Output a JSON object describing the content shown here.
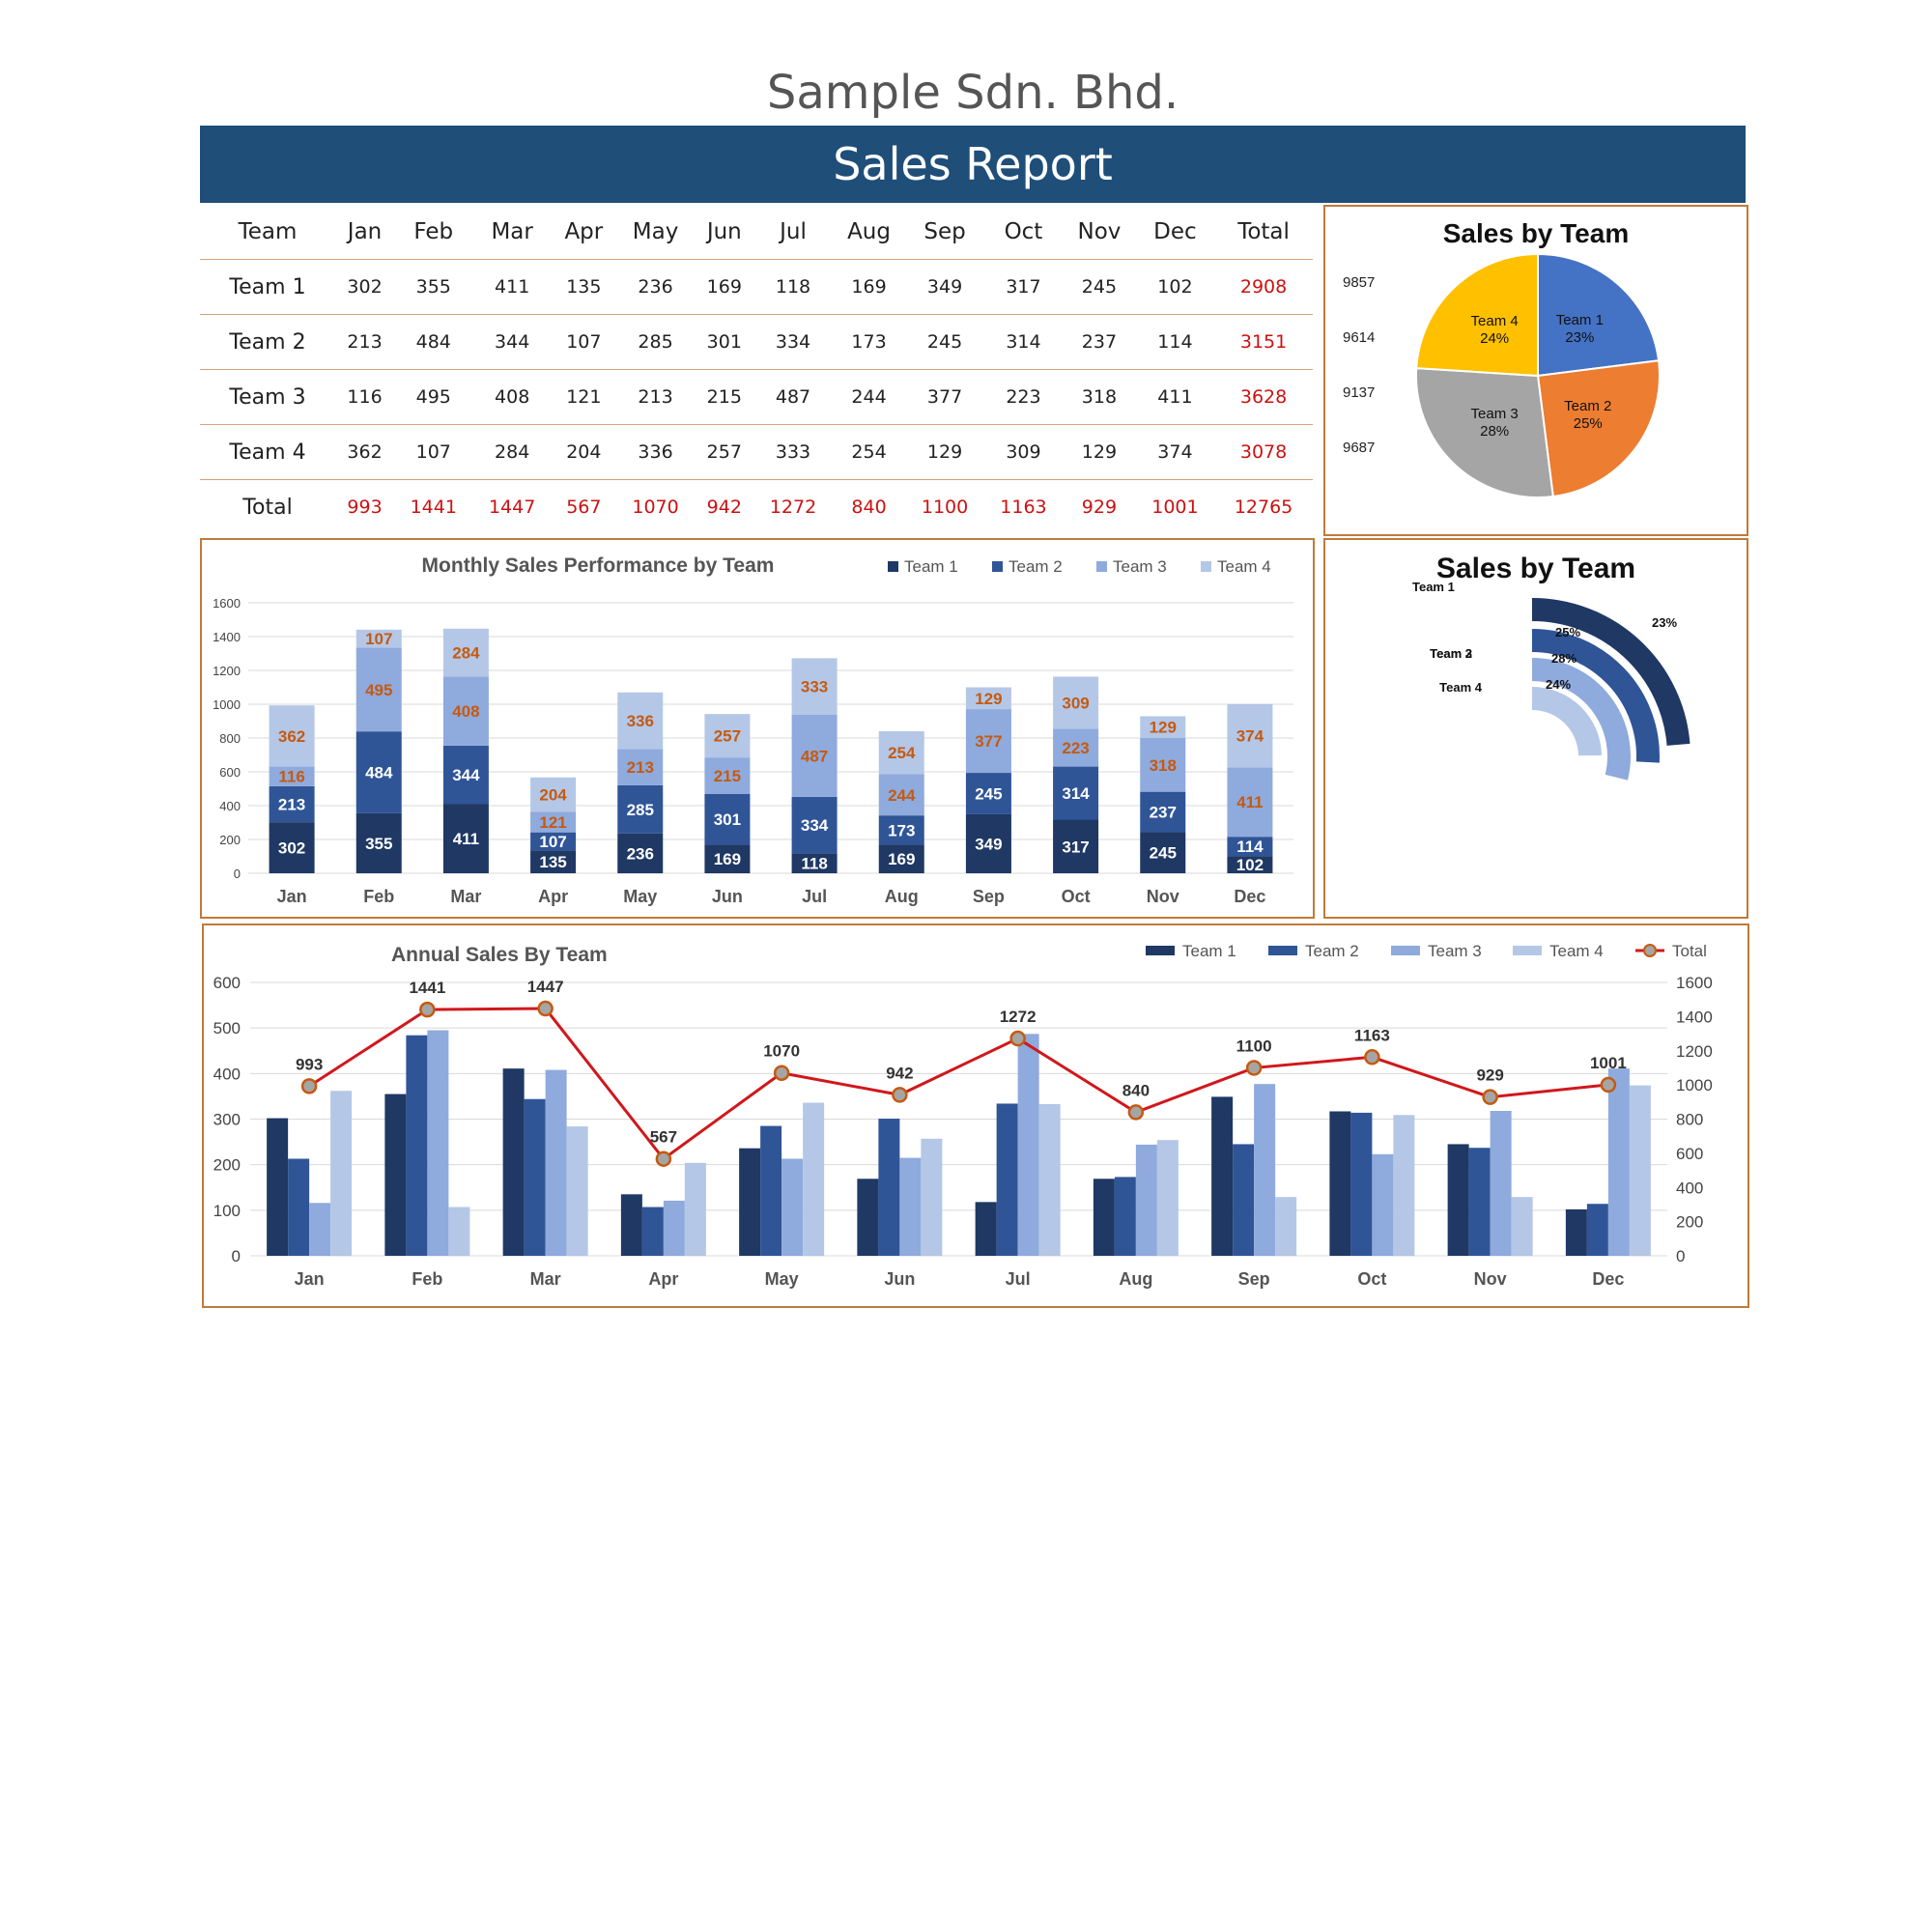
{
  "header": {
    "company": "Sample Sdn. Bhd.",
    "report_title": "Sales Report"
  },
  "colors": {
    "banner": "#1f4e79",
    "team1": "#1f3864",
    "team2": "#2f5597",
    "team3": "#8faadc",
    "team4": "#b4c7e7",
    "total_line": "#d0181c",
    "frame": "#c07a3a",
    "total_text": "#cc1111"
  },
  "table": {
    "headers": [
      "Team",
      "Jan",
      "Feb",
      "Mar",
      "Apr",
      "May",
      "Jun",
      "Jul",
      "Aug",
      "Sep",
      "Oct",
      "Nov",
      "Dec",
      "Total"
    ],
    "rows": [
      {
        "team": "Team 1",
        "values": [
          "302",
          "355",
          "411",
          "135",
          "236",
          "169",
          "118",
          "169",
          "349",
          "317",
          "245",
          "102"
        ],
        "total": "2908"
      },
      {
        "team": "Team 2",
        "values": [
          "213",
          "484",
          "344",
          "107",
          "285",
          "301",
          "334",
          "173",
          "245",
          "314",
          "237",
          "114"
        ],
        "total": "3151"
      },
      {
        "team": "Team 3",
        "values": [
          "116",
          "495",
          "408",
          "121",
          "213",
          "215",
          "487",
          "244",
          "377",
          "223",
          "318",
          "411"
        ],
        "total": "3628"
      },
      {
        "team": "Team 4",
        "values": [
          "362",
          "107",
          "284",
          "204",
          "336",
          "257",
          "333",
          "254",
          "129",
          "309",
          "129",
          "374"
        ],
        "total": "3078"
      }
    ],
    "total_row": {
      "label": "Total",
      "values": [
        "993",
        "1441",
        "1447",
        "567",
        "1070",
        "942",
        "1272",
        "840",
        "1100",
        "1163",
        "929",
        "1001"
      ],
      "total": "12765"
    }
  },
  "chart_data": [
    {
      "type": "pie",
      "title": "Sales by Team",
      "slices": [
        {
          "name": "Team 1",
          "percent": "23%",
          "share": 23,
          "color": "#4472c4"
        },
        {
          "name": "Team 2",
          "percent": "25%",
          "share": 25,
          "color": "#ed7d31"
        },
        {
          "name": "Team 3",
          "percent": "28%",
          "share": 28,
          "color": "#a5a5a5"
        },
        {
          "name": "Team 4",
          "percent": "24%",
          "share": 24,
          "color": "#ffc000"
        }
      ],
      "side_values": [
        "9857",
        "9614",
        "9137",
        "9687"
      ]
    },
    {
      "type": "bar",
      "stacked": true,
      "title": "Monthly Sales Performance by Team",
      "categories": [
        "Jan",
        "Feb",
        "Mar",
        "Apr",
        "May",
        "Jun",
        "Jul",
        "Aug",
        "Sep",
        "Oct",
        "Nov",
        "Dec"
      ],
      "series": [
        {
          "name": "Team 1",
          "values": [
            302,
            355,
            411,
            135,
            236,
            169,
            118,
            169,
            349,
            317,
            245,
            102
          ]
        },
        {
          "name": "Team 2",
          "values": [
            213,
            484,
            344,
            107,
            285,
            301,
            334,
            173,
            245,
            314,
            237,
            114
          ]
        },
        {
          "name": "Team 3",
          "values": [
            116,
            495,
            408,
            121,
            213,
            215,
            487,
            244,
            377,
            223,
            318,
            411
          ]
        },
        {
          "name": "Team 4",
          "values": [
            362,
            107,
            284,
            204,
            336,
            257,
            333,
            254,
            129,
            309,
            129,
            374
          ]
        }
      ],
      "ylim": [
        0,
        1600
      ],
      "yticks": [
        "0",
        "200",
        "400",
        "600",
        "800",
        "1000",
        "1200",
        "1400",
        "1600"
      ],
      "legend": "top-right",
      "grid": true
    },
    {
      "type": "radial-bar",
      "title": "Sales by Team",
      "items": [
        {
          "name": "Team 1",
          "percent": "23%",
          "share": 23
        },
        {
          "name": "Team 2",
          "percent": "25%",
          "share": 25
        },
        {
          "name": "Team 3",
          "percent": "28%",
          "share": 28
        },
        {
          "name": "Team 4",
          "percent": "24%",
          "share": 24
        }
      ]
    },
    {
      "type": "bar",
      "combo_line": true,
      "title": "Annual Sales By Team",
      "categories": [
        "Jan",
        "Feb",
        "Mar",
        "Apr",
        "May",
        "Jun",
        "Jul",
        "Aug",
        "Sep",
        "Oct",
        "Nov",
        "Dec"
      ],
      "series": [
        {
          "name": "Team 1",
          "values": [
            302,
            355,
            411,
            135,
            236,
            169,
            118,
            169,
            349,
            317,
            245,
            102
          ]
        },
        {
          "name": "Team 2",
          "values": [
            213,
            484,
            344,
            107,
            285,
            301,
            334,
            173,
            245,
            314,
            237,
            114
          ]
        },
        {
          "name": "Team 3",
          "values": [
            116,
            495,
            408,
            121,
            213,
            215,
            487,
            244,
            377,
            223,
            318,
            411
          ]
        },
        {
          "name": "Team 4",
          "values": [
            362,
            107,
            284,
            204,
            336,
            257,
            333,
            254,
            129,
            309,
            129,
            374
          ]
        }
      ],
      "line": {
        "name": "Total",
        "values": [
          993,
          1441,
          1447,
          567,
          1070,
          942,
          1272,
          840,
          1100,
          1163,
          929,
          1001
        ]
      },
      "ylim": [
        0,
        600
      ],
      "y2lim": [
        0,
        1600
      ],
      "yticks": [
        "0",
        "100",
        "200",
        "300",
        "400",
        "500",
        "600"
      ],
      "y2ticks": [
        "0",
        "200",
        "400",
        "600",
        "800",
        "1000",
        "1200",
        "1400",
        "1600"
      ],
      "legend": "top-right",
      "grid": true
    }
  ]
}
